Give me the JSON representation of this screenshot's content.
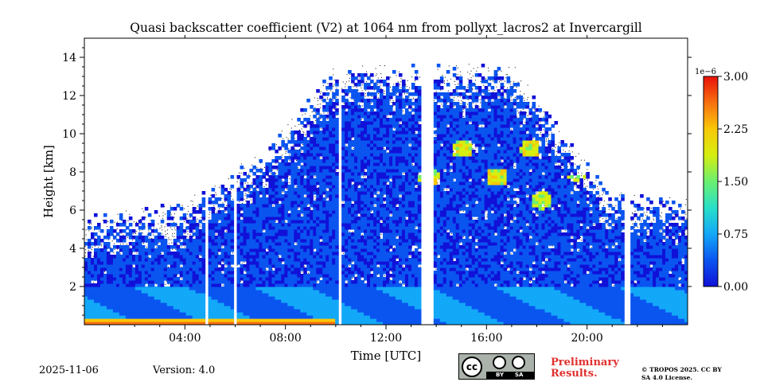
{
  "chart_data": {
    "type": "heatmap",
    "title": "Quasi backscatter coefficient (V2) at 1064 nm from pollyxt_lacros2 at Invercargill",
    "xlabel": "Time [UTC]",
    "ylabel": "Height [km]",
    "xlim_hours": [
      0,
      24
    ],
    "ylim_km": [
      0,
      15
    ],
    "x_ticks": [
      {
        "hour": 4,
        "label": "04:00"
      },
      {
        "hour": 8,
        "label": "08:00"
      },
      {
        "hour": 12,
        "label": "12:00"
      },
      {
        "hour": 16,
        "label": "16:00"
      },
      {
        "hour": 20,
        "label": "20:00"
      }
    ],
    "y_ticks": [
      {
        "km": 2,
        "label": "2"
      },
      {
        "km": 4,
        "label": "4"
      },
      {
        "km": 6,
        "label": "6"
      },
      {
        "km": 8,
        "label": "8"
      },
      {
        "km": 10,
        "label": "10"
      },
      {
        "km": 12,
        "label": "12"
      },
      {
        "km": 14,
        "label": "14"
      }
    ],
    "colorbar": {
      "exponent_label": "1e−6",
      "range": [
        0,
        3.0
      ],
      "ticks": [
        {
          "value": 0.0,
          "label": "0.00"
        },
        {
          "value": 0.75,
          "label": "0.75"
        },
        {
          "value": 1.5,
          "label": "1.50"
        },
        {
          "value": 2.25,
          "label": "2.25"
        },
        {
          "value": 3.0,
          "label": "3.00"
        }
      ],
      "colors": [
        "#1111d8",
        "#0a55f0",
        "#13a8f8",
        "#28e0c8",
        "#6bf070",
        "#d6ee10",
        "#f8c808",
        "#f87010",
        "#e81008"
      ]
    },
    "data_gaps_hours": [
      [
        4.8,
        4.95
      ],
      [
        5.9,
        6.0
      ],
      [
        10.1,
        10.25
      ],
      [
        13.35,
        13.85
      ],
      [
        21.5,
        21.7
      ]
    ],
    "features": [
      {
        "name": "boundary layer",
        "start_hour": 0,
        "end_hour": 24,
        "top_km": 2.0,
        "value_1e6": 0.6
      },
      {
        "name": "surface layer (high)",
        "start_hour": 0,
        "end_hour": 10,
        "top_km": 0.3,
        "value_1e6": 3.0
      },
      {
        "name": "cloud layer",
        "start_hour": 13,
        "end_hour": 18,
        "base_km": 7.0,
        "top_km": 10.2,
        "value_1e6": 1.6
      },
      {
        "name": "cloud layer",
        "start_hour": 17.5,
        "end_hour": 20.5,
        "base_km": 5.8,
        "top_km": 7.8,
        "value_1e6": 1.4
      }
    ]
  },
  "footer": {
    "date": "2025-11-06",
    "version": "Version: 4.0",
    "license_badge": {
      "cc": "cc",
      "by": "BY",
      "sa": "SA"
    },
    "preliminary": "Preliminary Results.",
    "copyright": "© TROPOS 2025. CC BY SA 4.0 License."
  }
}
